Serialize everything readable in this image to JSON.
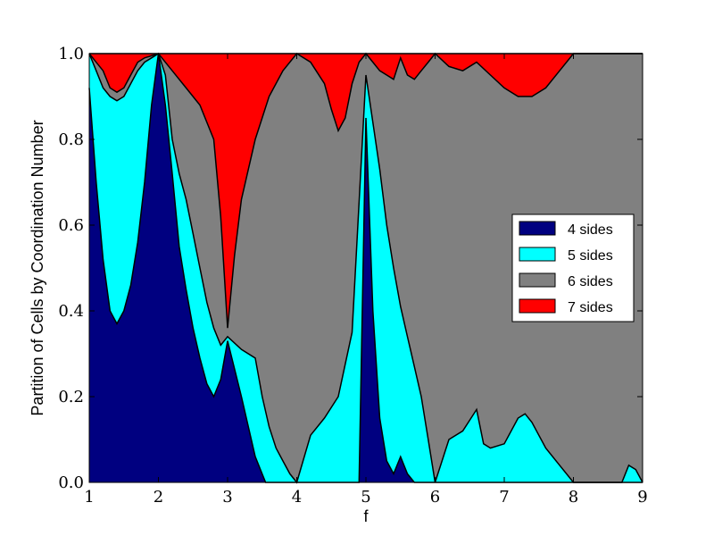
{
  "chart_data": {
    "type": "area",
    "stacked": true,
    "xlabel": "f",
    "ylabel": "Partition of Cells by Coordination Number",
    "xlim": [
      1,
      9
    ],
    "ylim": [
      0,
      1
    ],
    "xticks": [
      "1",
      "2",
      "3",
      "4",
      "5",
      "6",
      "7",
      "8",
      "9"
    ],
    "yticks": [
      "0.0",
      "0.2",
      "0.4",
      "0.6",
      "0.8",
      "1.0"
    ],
    "grid": false,
    "legend": {
      "position": "center-right"
    },
    "series": [
      {
        "name": "4 sides",
        "color": "#000080",
        "points": [
          [
            1,
            0.92
          ],
          [
            1.1,
            0.7
          ],
          [
            1.2,
            0.52
          ],
          [
            1.3,
            0.4
          ],
          [
            1.4,
            0.37
          ],
          [
            1.5,
            0.4
          ],
          [
            1.6,
            0.46
          ],
          [
            1.7,
            0.56
          ],
          [
            1.8,
            0.7
          ],
          [
            1.9,
            0.88
          ],
          [
            2,
            1.0
          ],
          [
            2.1,
            0.88
          ],
          [
            2.2,
            0.72
          ],
          [
            2.3,
            0.55
          ],
          [
            2.4,
            0.45
          ],
          [
            2.5,
            0.36
          ],
          [
            2.6,
            0.29
          ],
          [
            2.7,
            0.23
          ],
          [
            2.8,
            0.2
          ],
          [
            2.9,
            0.24
          ],
          [
            3,
            0.33
          ],
          [
            3.2,
            0.2
          ],
          [
            3.4,
            0.06
          ],
          [
            3.55,
            0.0
          ],
          [
            4.9,
            0.0
          ],
          [
            5,
            0.85
          ],
          [
            5.1,
            0.4
          ],
          [
            5.2,
            0.15
          ],
          [
            5.3,
            0.05
          ],
          [
            5.4,
            0.02
          ],
          [
            5.5,
            0.06
          ],
          [
            5.6,
            0.02
          ],
          [
            5.7,
            0.0
          ],
          [
            9,
            0.0
          ]
        ]
      },
      {
        "name": "5 sides",
        "color": "#00ffff",
        "points": [
          [
            1,
            1.0
          ],
          [
            1.1,
            0.96
          ],
          [
            1.2,
            0.92
          ],
          [
            1.3,
            0.9
          ],
          [
            1.4,
            0.89
          ],
          [
            1.5,
            0.9
          ],
          [
            1.6,
            0.93
          ],
          [
            1.7,
            0.96
          ],
          [
            1.8,
            0.98
          ],
          [
            1.9,
            0.99
          ],
          [
            2,
            1.0
          ],
          [
            2.1,
            0.95
          ],
          [
            2.2,
            0.8
          ],
          [
            2.3,
            0.72
          ],
          [
            2.4,
            0.66
          ],
          [
            2.5,
            0.58
          ],
          [
            2.6,
            0.5
          ],
          [
            2.7,
            0.42
          ],
          [
            2.8,
            0.36
          ],
          [
            2.9,
            0.32
          ],
          [
            3,
            0.34
          ],
          [
            3.2,
            0.31
          ],
          [
            3.4,
            0.29
          ],
          [
            3.5,
            0.2
          ],
          [
            3.6,
            0.13
          ],
          [
            3.7,
            0.08
          ],
          [
            3.8,
            0.05
          ],
          [
            3.9,
            0.02
          ],
          [
            4,
            0.0
          ],
          [
            4.2,
            0.11
          ],
          [
            4.4,
            0.15
          ],
          [
            4.6,
            0.2
          ],
          [
            4.8,
            0.35
          ],
          [
            5,
            0.95
          ],
          [
            5.2,
            0.73
          ],
          [
            5.3,
            0.6
          ],
          [
            5.4,
            0.5
          ],
          [
            5.5,
            0.41
          ],
          [
            5.6,
            0.34
          ],
          [
            5.7,
            0.27
          ],
          [
            5.8,
            0.2
          ],
          [
            5.9,
            0.1
          ],
          [
            6,
            0.0
          ],
          [
            6.2,
            0.1
          ],
          [
            6.4,
            0.12
          ],
          [
            6.6,
            0.17
          ],
          [
            6.7,
            0.09
          ],
          [
            6.8,
            0.08
          ],
          [
            7,
            0.09
          ],
          [
            7.2,
            0.15
          ],
          [
            7.3,
            0.16
          ],
          [
            7.4,
            0.14
          ],
          [
            7.6,
            0.08
          ],
          [
            7.8,
            0.04
          ],
          [
            8,
            0.0
          ],
          [
            8.5,
            0.0
          ],
          [
            8.7,
            0.0
          ],
          [
            8.8,
            0.04
          ],
          [
            8.9,
            0.03
          ],
          [
            9,
            0.0
          ]
        ]
      },
      {
        "name": "6 sides",
        "color": "#808080",
        "points": [
          [
            1,
            1.0
          ],
          [
            1.2,
            0.96
          ],
          [
            1.3,
            0.92
          ],
          [
            1.4,
            0.91
          ],
          [
            1.5,
            0.92
          ],
          [
            1.6,
            0.95
          ],
          [
            1.7,
            0.98
          ],
          [
            1.8,
            0.99
          ],
          [
            2,
            1.0
          ],
          [
            2.2,
            0.96
          ],
          [
            2.4,
            0.92
          ],
          [
            2.6,
            0.88
          ],
          [
            2.8,
            0.8
          ],
          [
            2.9,
            0.62
          ],
          [
            3,
            0.36
          ],
          [
            3.1,
            0.53
          ],
          [
            3.2,
            0.66
          ],
          [
            3.4,
            0.8
          ],
          [
            3.6,
            0.9
          ],
          [
            3.8,
            0.96
          ],
          [
            4,
            1.0
          ],
          [
            4.2,
            0.98
          ],
          [
            4.4,
            0.93
          ],
          [
            4.5,
            0.87
          ],
          [
            4.6,
            0.82
          ],
          [
            4.7,
            0.85
          ],
          [
            4.8,
            0.93
          ],
          [
            4.9,
            0.98
          ],
          [
            5,
            1.0
          ],
          [
            5.1,
            0.98
          ],
          [
            5.2,
            0.96
          ],
          [
            5.3,
            0.95
          ],
          [
            5.4,
            0.94
          ],
          [
            5.5,
            0.99
          ],
          [
            5.6,
            0.95
          ],
          [
            5.7,
            0.94
          ],
          [
            5.8,
            0.96
          ],
          [
            5.9,
            0.98
          ],
          [
            6,
            1.0
          ],
          [
            6.2,
            0.97
          ],
          [
            6.4,
            0.96
          ],
          [
            6.6,
            0.98
          ],
          [
            6.8,
            0.95
          ],
          [
            7,
            0.92
          ],
          [
            7.2,
            0.9
          ],
          [
            7.4,
            0.9
          ],
          [
            7.6,
            0.92
          ],
          [
            7.8,
            0.96
          ],
          [
            8,
            1.0
          ],
          [
            9,
            1.0
          ]
        ]
      },
      {
        "name": "7 sides",
        "color": "#ff0000",
        "points": [
          [
            1,
            1.0
          ],
          [
            9,
            1.0
          ]
        ]
      }
    ]
  }
}
